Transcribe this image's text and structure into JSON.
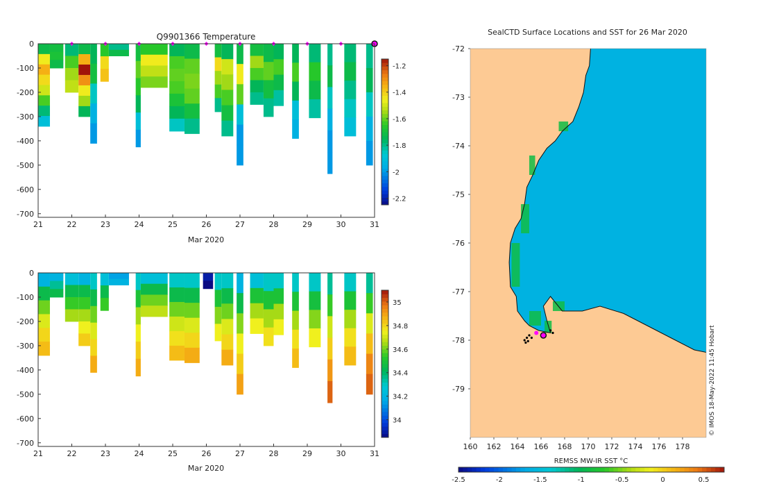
{
  "chart_data": [
    {
      "type": "heatmap",
      "title": "Q9901366  Temperature",
      "xlabel": "Mar 2020",
      "ylabel": "",
      "x_ticks": [
        "21",
        "22",
        "23",
        "24",
        "25",
        "26",
        "27",
        "28",
        "29",
        "30",
        "31"
      ],
      "xlim": [
        21,
        31
      ],
      "y_ticks": [
        "0",
        "-100",
        "-200",
        "-300",
        "-400",
        "-500",
        "-600",
        "-700"
      ],
      "ylim": [
        -715,
        0
      ],
      "colorbar": {
        "ticks": [
          "-1.2",
          "-1.4",
          "-1.6",
          "-1.8",
          "-2",
          "-2.2"
        ],
        "range": [
          -2.25,
          -1.15
        ]
      },
      "surfacing_markers": [
        22,
        23,
        24,
        25,
        26,
        27,
        28,
        29,
        30
      ],
      "last_marker": 31,
      "profiles": [
        {
          "x": 21.0,
          "w": 0.35,
          "depth": 340,
          "values": [
            -1.72,
            -1.45,
            -1.35,
            -1.42,
            -1.5,
            -1.62,
            -1.78,
            -1.9
          ]
        },
        {
          "x": 21.35,
          "w": 0.4,
          "depth": 100,
          "values": [
            -1.7,
            -1.68,
            -1.72
          ]
        },
        {
          "x": 21.8,
          "w": 0.4,
          "depth": 200,
          "values": [
            -1.78,
            -1.62,
            -1.55,
            -1.52
          ]
        },
        {
          "x": 22.2,
          "w": 0.35,
          "depth": 300,
          "values": [
            -1.72,
            -1.35,
            -1.15,
            -1.3,
            -1.45,
            -1.55,
            -1.75
          ]
        },
        {
          "x": 22.55,
          "w": 0.2,
          "depth": 410,
          "values": [
            -1.75,
            -1.7,
            -1.85,
            -1.95,
            -2.0
          ]
        },
        {
          "x": 22.85,
          "w": 0.25,
          "depth": 155,
          "values": [
            -1.65,
            -1.42,
            -1.38
          ]
        },
        {
          "x": 23.1,
          "w": 0.6,
          "depth": 50,
          "values": [
            -1.8,
            -1.72
          ]
        },
        {
          "x": 23.9,
          "w": 0.15,
          "depth": 425,
          "values": [
            -1.7,
            -1.6,
            -1.65,
            -1.75,
            -1.9,
            -2.0
          ]
        },
        {
          "x": 24.05,
          "w": 0.8,
          "depth": 180,
          "values": [
            -1.65,
            -1.45,
            -1.52,
            -1.58
          ]
        },
        {
          "x": 24.9,
          "w": 0.45,
          "depth": 360,
          "values": [
            -1.75,
            -1.62,
            -1.6,
            -1.62,
            -1.68,
            -1.75,
            -1.85
          ]
        },
        {
          "x": 25.35,
          "w": 0.45,
          "depth": 370,
          "values": [
            -1.72,
            -1.6,
            -1.58,
            -1.6,
            -1.7,
            -1.8
          ]
        },
        {
          "x": 26.25,
          "w": 0.2,
          "depth": 280,
          "values": [
            -1.7,
            -1.42,
            -1.55,
            -1.62,
            -1.8
          ]
        },
        {
          "x": 26.45,
          "w": 0.35,
          "depth": 380,
          "values": [
            -1.75,
            -1.5,
            -1.55,
            -1.62,
            -1.7,
            -1.8
          ]
        },
        {
          "x": 26.9,
          "w": 0.2,
          "depth": 500,
          "values": [
            -1.72,
            -1.45,
            -1.6,
            -1.9,
            -2.0,
            -2.0
          ]
        },
        {
          "x": 27.3,
          "w": 0.4,
          "depth": 250,
          "values": [
            -1.7,
            -1.55,
            -1.62,
            -1.75,
            -1.8
          ]
        },
        {
          "x": 27.7,
          "w": 0.3,
          "depth": 300,
          "values": [
            -1.72,
            -1.6,
            -1.7,
            -1.8
          ]
        },
        {
          "x": 28.0,
          "w": 0.3,
          "depth": 255,
          "values": [
            -1.75,
            -1.62,
            -1.72,
            -1.82
          ]
        },
        {
          "x": 28.55,
          "w": 0.2,
          "depth": 390,
          "values": [
            -1.75,
            -1.62,
            -1.75,
            -1.9,
            -1.95
          ]
        },
        {
          "x": 29.05,
          "w": 0.35,
          "depth": 305,
          "values": [
            -1.78,
            -1.65,
            -1.72,
            -1.82
          ]
        },
        {
          "x": 29.6,
          "w": 0.15,
          "depth": 535,
          "values": [
            -1.8,
            -1.72,
            -1.85,
            -1.95,
            -2.0,
            -2.0
          ]
        },
        {
          "x": 30.1,
          "w": 0.35,
          "depth": 380,
          "values": [
            -1.78,
            -1.72,
            -1.8,
            -1.85,
            -1.9
          ]
        },
        {
          "x": 30.75,
          "w": 0.2,
          "depth": 500,
          "values": [
            -1.8,
            -1.75,
            -1.85,
            -1.95,
            -2.0
          ]
        }
      ]
    },
    {
      "type": "heatmap",
      "title": "",
      "xlabel": "Mar 2020",
      "ylabel": "",
      "x_ticks": [
        "21",
        "22",
        "23",
        "24",
        "25",
        "26",
        "27",
        "28",
        "29",
        "30",
        "31"
      ],
      "xlim": [
        21,
        31
      ],
      "y_ticks": [
        "0",
        "-100",
        "-200",
        "-300",
        "-400",
        "-500",
        "-600",
        "-700"
      ],
      "ylim": [
        -715,
        0
      ],
      "colorbar": {
        "ticks": [
          "35",
          "34.8",
          "34.6",
          "34.4",
          "34.2",
          "34"
        ],
        "range": [
          33.85,
          35.1
        ]
      },
      "profiles": [
        {
          "x": 21.0,
          "w": 0.35,
          "depth": 340,
          "values": [
            34.2,
            34.45,
            34.6,
            34.72,
            34.8,
            34.85
          ]
        },
        {
          "x": 21.35,
          "w": 0.4,
          "depth": 100,
          "values": [
            34.2,
            34.35,
            34.45
          ]
        },
        {
          "x": 21.8,
          "w": 0.4,
          "depth": 200,
          "values": [
            34.25,
            34.45,
            34.55,
            34.65
          ]
        },
        {
          "x": 22.2,
          "w": 0.35,
          "depth": 300,
          "values": [
            34.2,
            34.45,
            34.55,
            34.65,
            34.75,
            34.82
          ]
        },
        {
          "x": 22.55,
          "w": 0.2,
          "depth": 410,
          "values": [
            34.3,
            34.45,
            34.6,
            34.72,
            34.8,
            34.88
          ]
        },
        {
          "x": 22.85,
          "w": 0.25,
          "depth": 155,
          "values": [
            34.25,
            34.45,
            34.55
          ]
        },
        {
          "x": 23.1,
          "w": 0.6,
          "depth": 50,
          "values": [
            34.15,
            34.2
          ]
        },
        {
          "x": 23.9,
          "w": 0.15,
          "depth": 425,
          "values": [
            34.3,
            34.5,
            34.65,
            34.75,
            34.82,
            34.88
          ]
        },
        {
          "x": 24.05,
          "w": 0.8,
          "depth": 180,
          "values": [
            34.25,
            34.45,
            34.6,
            34.68
          ]
        },
        {
          "x": 24.9,
          "w": 0.45,
          "depth": 360,
          "values": [
            34.3,
            34.45,
            34.6,
            34.7,
            34.78,
            34.85
          ]
        },
        {
          "x": 25.35,
          "w": 0.45,
          "depth": 370,
          "values": [
            34.3,
            34.45,
            34.6,
            34.72,
            34.8,
            34.88
          ]
        },
        {
          "x": 25.9,
          "w": 0.3,
          "depth": 65,
          "values": [
            33.9,
            33.85
          ]
        },
        {
          "x": 26.25,
          "w": 0.2,
          "depth": 280,
          "values": [
            34.3,
            34.5,
            34.62,
            34.75
          ]
        },
        {
          "x": 26.45,
          "w": 0.35,
          "depth": 380,
          "values": [
            34.3,
            34.45,
            34.6,
            34.72,
            34.8,
            34.88
          ]
        },
        {
          "x": 26.9,
          "w": 0.2,
          "depth": 500,
          "values": [
            34.2,
            34.45,
            34.62,
            34.75,
            34.82,
            34.9
          ]
        },
        {
          "x": 27.3,
          "w": 0.4,
          "depth": 250,
          "values": [
            34.25,
            34.5,
            34.65,
            34.75
          ]
        },
        {
          "x": 27.7,
          "w": 0.3,
          "depth": 300,
          "values": [
            34.3,
            34.5,
            34.65,
            34.78
          ]
        },
        {
          "x": 28.0,
          "w": 0.3,
          "depth": 255,
          "values": [
            34.3,
            34.5,
            34.65,
            34.75
          ]
        },
        {
          "x": 28.55,
          "w": 0.2,
          "depth": 390,
          "values": [
            34.3,
            34.5,
            34.65,
            34.78,
            34.85
          ]
        },
        {
          "x": 29.05,
          "w": 0.35,
          "depth": 305,
          "values": [
            34.3,
            34.48,
            34.62,
            34.75
          ]
        },
        {
          "x": 29.6,
          "w": 0.15,
          "depth": 535,
          "values": [
            34.35,
            34.55,
            34.7,
            34.82,
            34.92,
            35.0
          ]
        },
        {
          "x": 30.1,
          "w": 0.35,
          "depth": 380,
          "values": [
            34.3,
            34.5,
            34.65,
            34.78,
            34.85
          ]
        },
        {
          "x": 30.75,
          "w": 0.2,
          "depth": 500,
          "values": [
            34.35,
            34.55,
            34.72,
            34.85,
            34.95,
            35.0
          ]
        }
      ]
    },
    {
      "type": "heatmap",
      "title": "SealCTD Surface Locations and SST for 26 Mar 2020",
      "xlabel": "",
      "ylabel": "",
      "x_ticks": [
        "160",
        "162",
        "164",
        "166",
        "168",
        "170",
        "172",
        "174",
        "176",
        "178"
      ],
      "xlim": [
        160,
        180
      ],
      "y_ticks": [
        "-72",
        "-73",
        "-74",
        "-75",
        "-76",
        "-77",
        "-78",
        "-79"
      ],
      "ylim": [
        -80,
        -72
      ],
      "sst_value": -1.6,
      "land_color": "#fdca94",
      "coastline": [
        [
          170.2,
          -72.0
        ],
        [
          170.1,
          -72.35
        ],
        [
          169.8,
          -72.55
        ],
        [
          169.6,
          -72.9
        ],
        [
          169.2,
          -73.2
        ],
        [
          168.7,
          -73.5
        ],
        [
          167.8,
          -73.7
        ],
        [
          167.2,
          -73.9
        ],
        [
          166.5,
          -74.05
        ],
        [
          165.8,
          -74.3
        ],
        [
          165.3,
          -74.6
        ],
        [
          164.8,
          -74.85
        ],
        [
          164.6,
          -75.2
        ],
        [
          164.3,
          -75.5
        ],
        [
          163.8,
          -75.7
        ],
        [
          163.4,
          -76.0
        ],
        [
          163.3,
          -76.4
        ],
        [
          163.4,
          -76.9
        ],
        [
          163.9,
          -77.1
        ],
        [
          164.0,
          -77.4
        ],
        [
          164.6,
          -77.6
        ],
        [
          165.0,
          -77.7
        ],
        [
          165.8,
          -77.8
        ],
        [
          166.8,
          -77.85
        ],
        [
          166.5,
          -77.6
        ],
        [
          166.2,
          -77.3
        ],
        [
          166.8,
          -77.1
        ],
        [
          167.8,
          -77.4
        ],
        [
          169.5,
          -77.4
        ],
        [
          171.0,
          -77.3
        ],
        [
          173.0,
          -77.45
        ],
        [
          175.0,
          -77.7
        ],
        [
          177.0,
          -77.95
        ],
        [
          179.0,
          -78.2
        ],
        [
          180.0,
          -78.25
        ]
      ],
      "sea_blocks": [
        {
          "lon": [
            164.3,
            165.0
          ],
          "lat": [
            -75.8,
            -75.2
          ],
          "value": -0.9
        },
        {
          "lon": [
            163.5,
            164.2
          ],
          "lat": [
            -76.9,
            -76.0
          ],
          "value": -0.9
        },
        {
          "lon": [
            165.0,
            166.0
          ],
          "lat": [
            -77.7,
            -77.4
          ],
          "value": -0.9
        },
        {
          "lon": [
            166.3,
            166.9
          ],
          "lat": [
            -77.85,
            -77.6
          ],
          "value": -0.9
        },
        {
          "lon": [
            165.0,
            165.5
          ],
          "lat": [
            -74.6,
            -74.2
          ],
          "value": -0.9
        },
        {
          "lon": [
            167.5,
            168.3
          ],
          "lat": [
            -73.7,
            -73.5
          ],
          "value": -0.9
        },
        {
          "lon": [
            167.0,
            168.0
          ],
          "lat": [
            -77.4,
            -77.2
          ],
          "value": -0.9
        }
      ],
      "seal_locations": [
        [
          164.8,
          -77.95
        ],
        [
          164.6,
          -78.0
        ],
        [
          164.9,
          -78.02
        ],
        [
          165.2,
          -77.95
        ],
        [
          166.8,
          -77.8
        ],
        [
          167.0,
          -77.85
        ],
        [
          164.7,
          -78.05
        ],
        [
          165.0,
          -77.9
        ]
      ],
      "latest_location": [
        166.2,
        -77.9
      ],
      "previous_location": [
        165.6,
        -77.85
      ],
      "colorbar": {
        "label": "REMSS MW-IR SST °C",
        "ticks": [
          "-2.5",
          "-2",
          "-1.5",
          "-1",
          "-0.5",
          "0",
          "0.5"
        ],
        "range": [
          -2.5,
          0.75
        ]
      },
      "credit": "© IMOS 18-May-2022 11:45 Hobart"
    }
  ]
}
